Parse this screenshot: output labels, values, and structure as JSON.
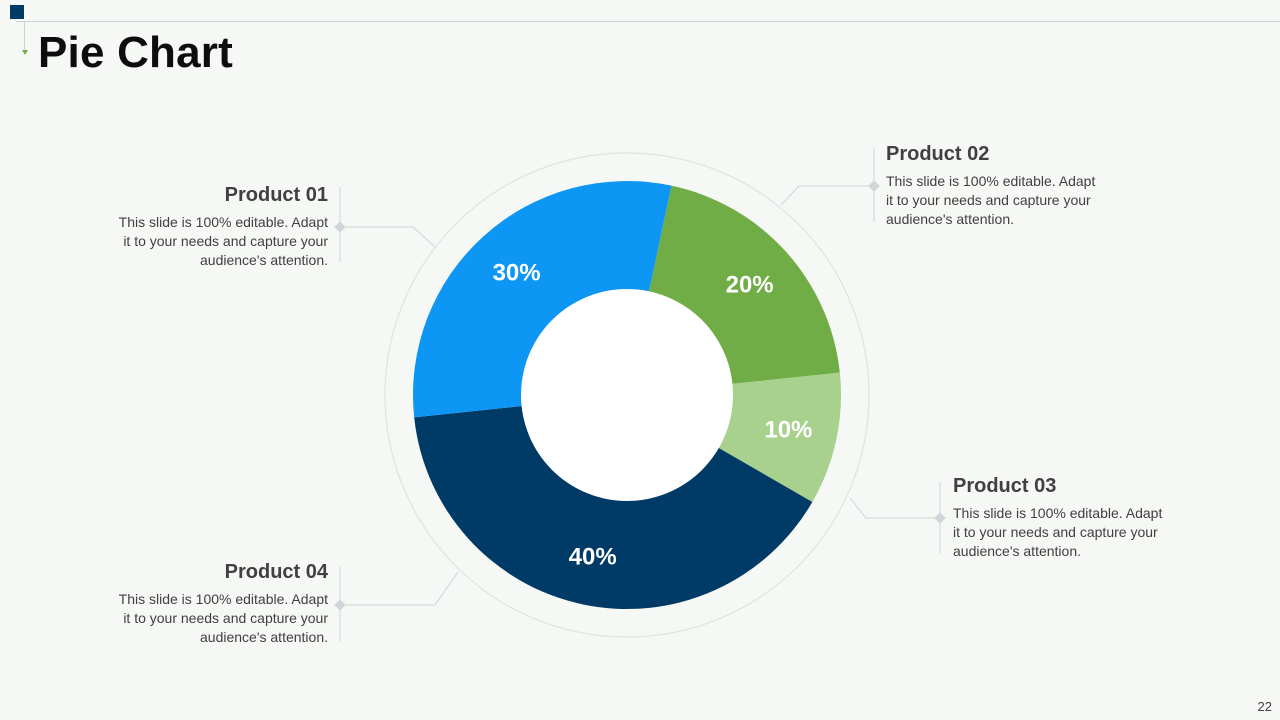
{
  "page": {
    "title": "Pie Chart",
    "page_number": "22"
  },
  "colors": {
    "product_01": "#0e96f5",
    "product_02": "#70ad47",
    "product_03": "#a9d18e",
    "product_04": "#003a66",
    "accent_square": "#003a66"
  },
  "callouts": [
    {
      "title": "Product 01",
      "desc": "This slide is 100% editable. Adapt it to your needs and capture your audience's attention."
    },
    {
      "title": "Product 02",
      "desc": "This slide is 100% editable. Adapt it to your needs and capture your audience's attention."
    },
    {
      "title": "Product 03",
      "desc": "This slide is 100% editable. Adapt it to your needs and capture your audience's attention."
    },
    {
      "title": "Product 04",
      "desc": "This slide is 100% editable. Adapt it to your needs and capture your audience's attention."
    }
  ],
  "chart_data": {
    "type": "pie",
    "variant": "donut",
    "categories": [
      "Product 01",
      "Product 02",
      "Product 03",
      "Product 04"
    ],
    "values": [
      30,
      20,
      10,
      40
    ],
    "labels": [
      "30%",
      "20%",
      "10%",
      "40%"
    ],
    "colors": [
      "#0e96f5",
      "#70ad47",
      "#a9d18e",
      "#003a66"
    ],
    "title": ""
  }
}
